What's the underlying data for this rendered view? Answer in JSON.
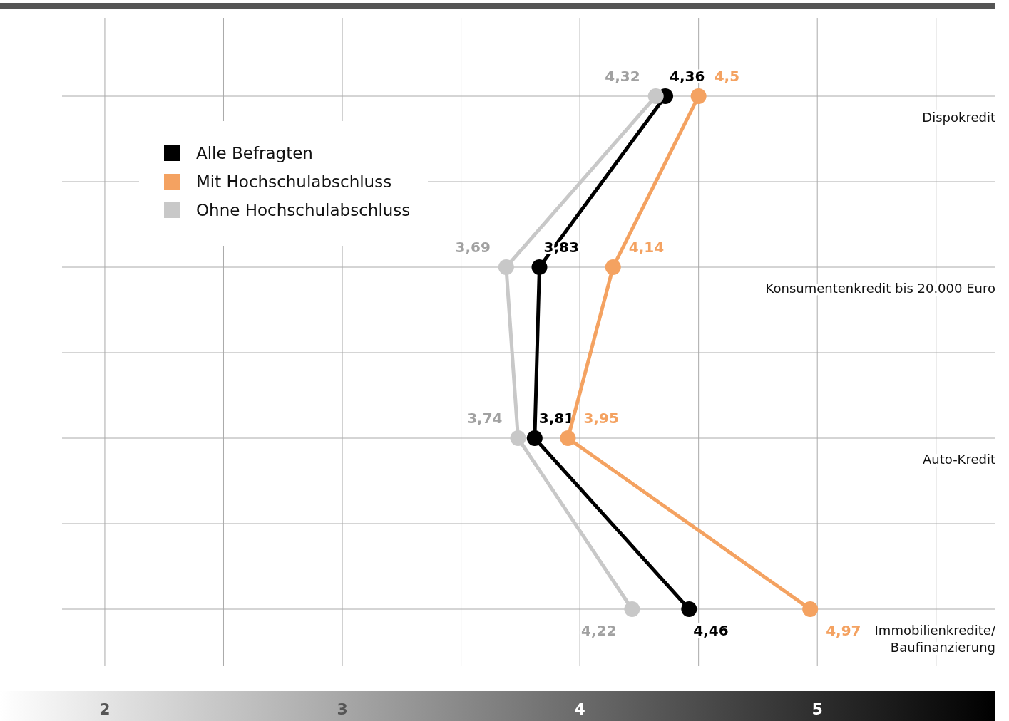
{
  "chart_data": {
    "type": "line",
    "orientation": "horizontal",
    "categories": [
      "Dispokredit",
      "Konsumentenkredit bis 20.000 Euro",
      "Auto-Kredit",
      "Immobilienkredite/Baufinanzierung"
    ],
    "series": [
      {
        "name": "Alle Befragten",
        "color": "#000000",
        "values": [
          4.36,
          3.83,
          3.81,
          4.46
        ],
        "value_labels": [
          "4,36",
          "3,83",
          "3,81",
          "4,46"
        ]
      },
      {
        "name": "Mit Hochschulabschluss",
        "color": "#f4a261",
        "values": [
          4.5,
          4.14,
          3.95,
          4.97
        ],
        "value_labels": [
          "4,5",
          "4,14",
          "3,95",
          "4,97"
        ]
      },
      {
        "name": "Ohne Hochschulabschluss",
        "color": "#c8c8c8",
        "values": [
          4.32,
          3.69,
          3.74,
          4.22
        ],
        "value_labels": [
          "4,32",
          "3,69",
          "3,74",
          "4,22"
        ]
      }
    ],
    "xlim": [
      1.82,
      5.75
    ],
    "xticks": [
      2,
      {
        "value": 2.5,
        "label": null
      },
      3,
      {
        "value": 3.5,
        "label": null
      },
      4,
      {
        "value": 4.5,
        "label": null
      },
      5,
      {
        "value": 5.5,
        "label": null
      }
    ],
    "grid": true,
    "legend": "top left",
    "marker": "circle",
    "line_style": "solid"
  }
}
